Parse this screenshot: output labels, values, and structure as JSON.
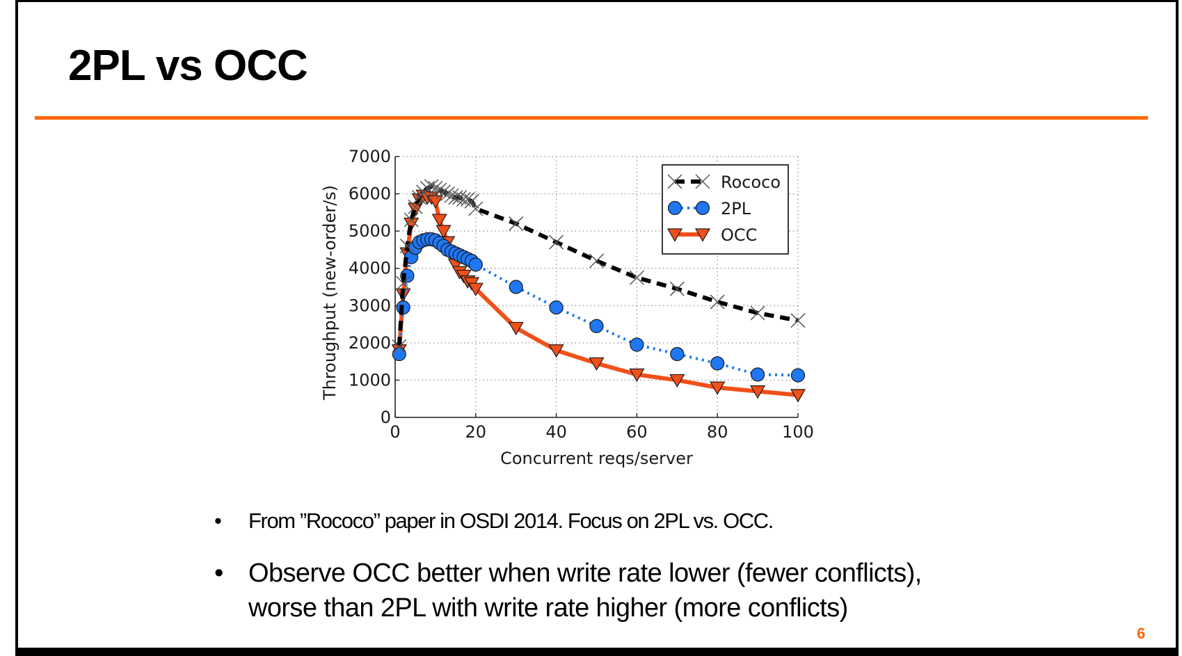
{
  "slide": {
    "title": "2PL vs OCC",
    "accent_color": "#ff6600",
    "page_number": "6",
    "bullets": [
      {
        "text": "From ”Rococo” paper in OSDI 2014.  Focus on 2PL vs. OCC."
      },
      {
        "text": "Observe OCC better when write rate lower (fewer conflicts), worse than 2PL with write rate higher (more conflicts)"
      }
    ],
    "bullet_glyph": "•"
  },
  "chart_data": {
    "type": "line",
    "title": "",
    "xlabel": "Concurrent reqs/server",
    "ylabel": "Throughput (new-order/s)",
    "xlim": [
      0,
      100
    ],
    "ylim": [
      0,
      7000
    ],
    "xticks": [
      0,
      20,
      40,
      60,
      80,
      100
    ],
    "yticks": [
      0,
      1000,
      2000,
      3000,
      4000,
      5000,
      6000,
      7000
    ],
    "grid": true,
    "legend_position": "top-right",
    "x": [
      1,
      2,
      3,
      4,
      5,
      6,
      7,
      8,
      9,
      10,
      11,
      12,
      13,
      14,
      15,
      16,
      17,
      18,
      19,
      20,
      30,
      40,
      50,
      60,
      70,
      80,
      90,
      100
    ],
    "series": [
      {
        "name": "Rococo",
        "color": "#000000",
        "marker": "x",
        "line_style": "dashed",
        "values": [
          1900,
          3600,
          4600,
          5300,
          5650,
          5900,
          6050,
          6150,
          6200,
          6150,
          6100,
          6050,
          6000,
          5950,
          5900,
          5900,
          5850,
          5850,
          5800,
          5600,
          5200,
          4700,
          4200,
          3750,
          3450,
          3100,
          2800,
          2600
        ]
      },
      {
        "name": "2PL",
        "color": "#1f77f4",
        "marker": "circle",
        "line_style": "dotted",
        "values": [
          1700,
          2950,
          3800,
          4300,
          4550,
          4700,
          4750,
          4780,
          4780,
          4750,
          4680,
          4600,
          4500,
          4450,
          4400,
          4350,
          4300,
          4250,
          4200,
          4100,
          3500,
          2950,
          2450,
          1950,
          1700,
          1450,
          1150,
          1130
        ]
      },
      {
        "name": "OCC",
        "color": "#f0501a",
        "marker": "triangle-down",
        "line_style": "solid",
        "values": [
          1800,
          3300,
          4400,
          5200,
          5600,
          5850,
          5950,
          5900,
          5900,
          5800,
          5300,
          5000,
          4700,
          4400,
          4100,
          3900,
          3800,
          3650,
          3600,
          3450,
          2400,
          1800,
          1450,
          1150,
          1000,
          800,
          700,
          600
        ]
      }
    ]
  }
}
